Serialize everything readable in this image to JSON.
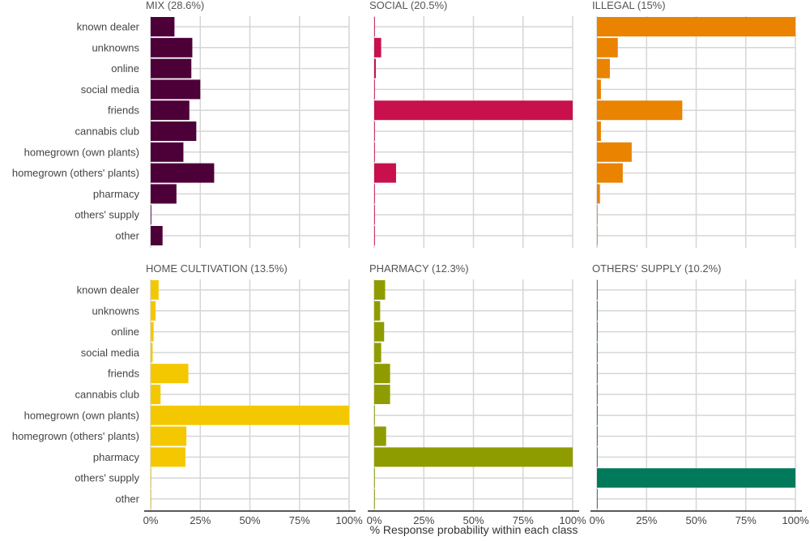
{
  "chart_data": {
    "type": "bar",
    "orientation": "horizontal",
    "layout": "facet-grid 2x3",
    "categories": [
      "known dealer",
      "unknowns",
      "online",
      "social media",
      "friends",
      "cannabis club",
      "homegrown (own plants)",
      "homegrown (others' plants)",
      "pharmacy",
      "others' supply",
      "other"
    ],
    "xlabel": "% Response probability within each class",
    "xlim": [
      0,
      100
    ],
    "x_ticks": [
      "0%",
      "25%",
      "50%",
      "75%",
      "100%"
    ],
    "grid": true,
    "legend": "none",
    "panels": [
      {
        "title": "MIX (28.6%)",
        "color": "#4d0038",
        "values": [
          12,
          21,
          20.5,
          25,
          19.5,
          23,
          16.5,
          32,
          13,
          0.3,
          6
        ]
      },
      {
        "title": "SOCIAL (20.5%)",
        "color": "#c8104c",
        "values": [
          0.3,
          3.5,
          0.8,
          0.3,
          100,
          0.3,
          0.3,
          11,
          0.3,
          0.3,
          0.3
        ]
      },
      {
        "title": "ILLEGAL (15%)",
        "color": "#e98300",
        "values": [
          100,
          10.5,
          6.5,
          2,
          43,
          2,
          17.5,
          13,
          1.5,
          0.3,
          0.3
        ]
      },
      {
        "title": "HOME CULTIVATION (13.5%)",
        "color": "#f4c800",
        "values": [
          4,
          2.5,
          1.5,
          1,
          19,
          5,
          100,
          18,
          17.5,
          0.3,
          0.3
        ]
      },
      {
        "title": "PHARMACY (12.3%)",
        "color": "#8f9c00",
        "values": [
          5.5,
          3,
          5,
          3.5,
          8,
          8,
          0.3,
          6,
          100,
          0.3,
          0.3
        ]
      },
      {
        "title": "OTHERS' SUPPLY (10.2%)",
        "color": "#007a5a",
        "values": [
          0.3,
          0.3,
          0.3,
          0.3,
          0.3,
          0.3,
          0.3,
          0.3,
          0.3,
          100,
          0.3
        ]
      }
    ]
  }
}
